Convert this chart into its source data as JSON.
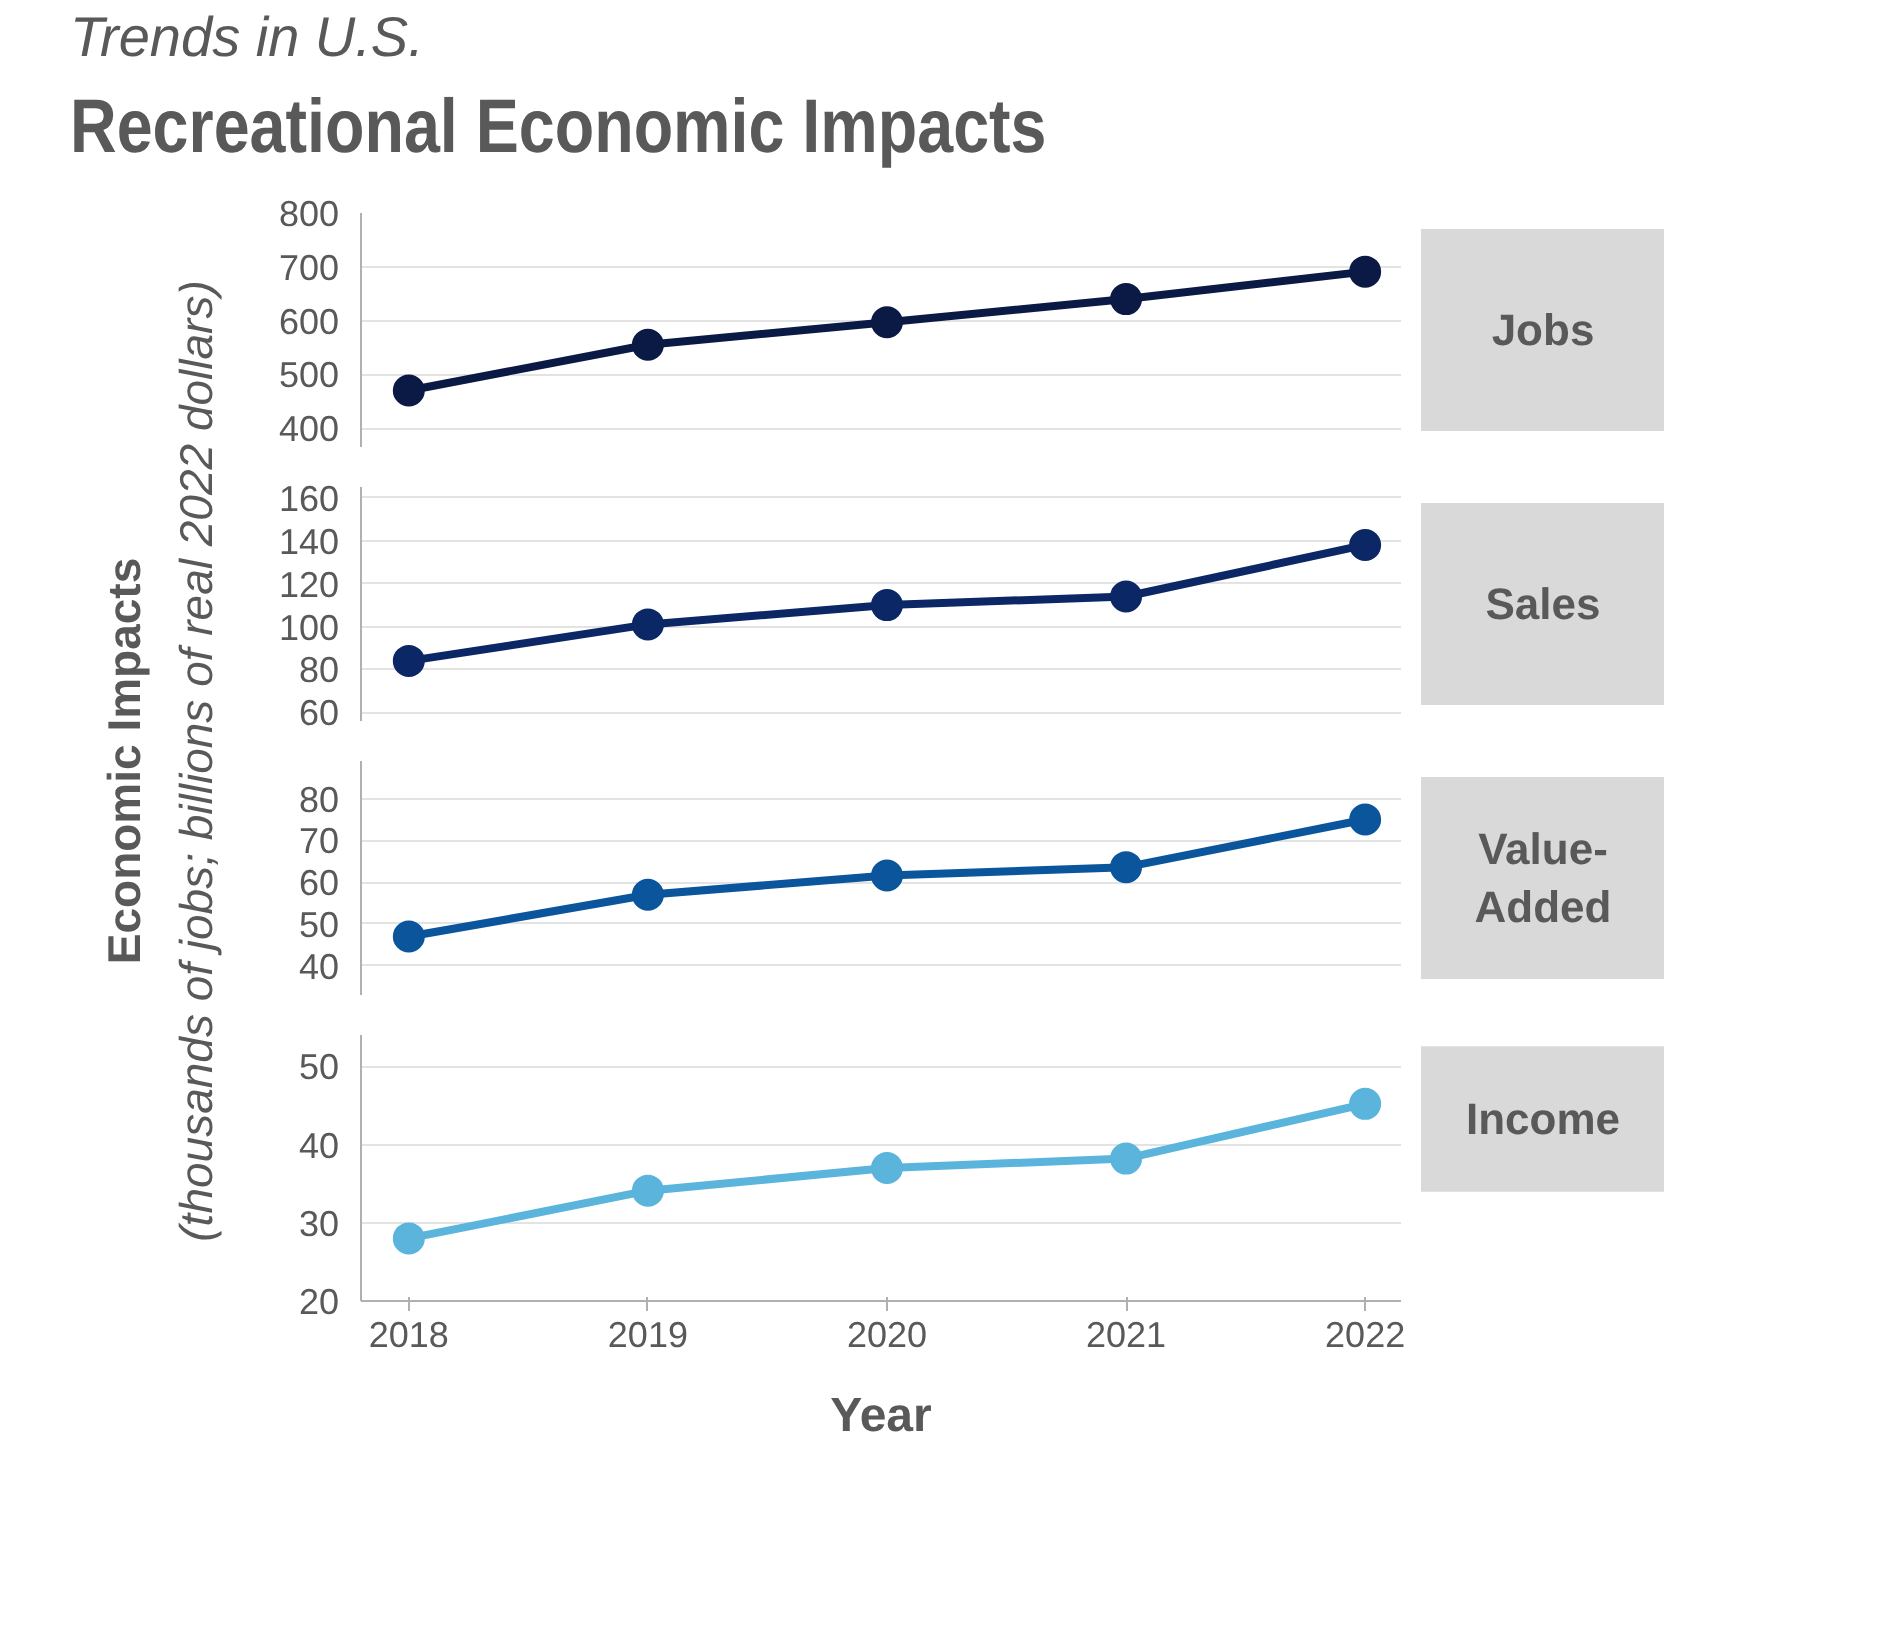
{
  "chart_data": [
    {
      "type": "line",
      "subtitle": "Trends in U.S.",
      "title": "Recreational Economic Impacts",
      "ylabel": "Economic Impacts\n(thousands of jobs; billions of real 2022 dollars)",
      "x": [
        2018,
        2019,
        2020,
        2021,
        2022
      ],
      "xlim": [
        2017.8,
        2022.15
      ],
      "ylim": [
        365,
        800
      ],
      "yticks": [
        400,
        500,
        600,
        700,
        800
      ],
      "grid": "y",
      "marker": "circle",
      "tick_labels": "y",
      "series": [
        {
          "name": "Jobs",
          "color": "#0b1a45",
          "values": [
            470,
            555,
            597,
            640,
            691
          ]
        }
      ]
    },
    {
      "type": "line",
      "x": [
        2018,
        2019,
        2020,
        2021,
        2022
      ],
      "xlim": [
        2017.8,
        2022.15
      ],
      "ylim": [
        56,
        165
      ],
      "yticks": [
        60,
        80,
        100,
        120,
        140,
        160
      ],
      "grid": "y",
      "marker": "circle",
      "tick_labels": "y",
      "series": [
        {
          "name": "Sales",
          "color": "#0c2766",
          "values": [
            84,
            101,
            110,
            114,
            138
          ]
        }
      ]
    },
    {
      "type": "line",
      "x": [
        2018,
        2019,
        2020,
        2021,
        2022
      ],
      "xlim": [
        2017.8,
        2022.15
      ],
      "ylim": [
        33,
        89
      ],
      "yticks": [
        40,
        50,
        60,
        70,
        80
      ],
      "grid": "y",
      "marker": "circle",
      "tick_labels": "y",
      "series": [
        {
          "name": "Value-Added",
          "color": "#0a559c",
          "values": [
            47,
            57,
            61.6,
            63.6,
            75
          ]
        }
      ]
    },
    {
      "type": "line",
      "xlabel": "Year",
      "x": [
        2018,
        2019,
        2020,
        2021,
        2022
      ],
      "xlim": [
        2017.8,
        2022.15
      ],
      "xticks": [
        2018,
        2019,
        2020,
        2021,
        2022
      ],
      "ylim": [
        20,
        54
      ],
      "yticks": [
        20,
        30,
        40,
        50
      ],
      "grid": "y",
      "marker": "circle",
      "series": [
        {
          "name": "Income",
          "color": "#5ab4db",
          "values": [
            28,
            34.1,
            37,
            38.2,
            45.2
          ]
        }
      ]
    }
  ]
}
